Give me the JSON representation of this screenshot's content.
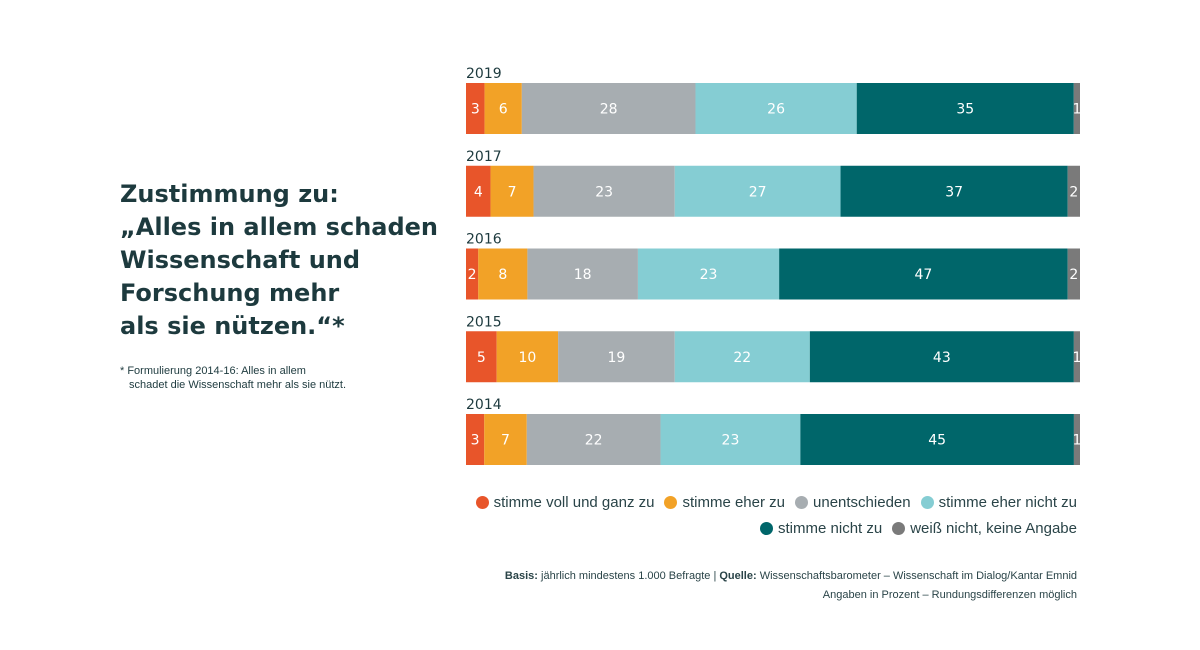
{
  "title": {
    "line1": "Zustimmung zu:",
    "line2": "„Alles in allem schaden",
    "line3": "Wissenschaft und",
    "line4": "Forschung mehr",
    "line5": "als sie nützen.“*"
  },
  "footnote": {
    "line1": "* Formulierung 2014-16: Alles in allem",
    "line2": "schadet die Wissenschaft mehr als sie nützt."
  },
  "chart_data": {
    "type": "bar",
    "orientation": "horizontal",
    "stacked": true,
    "unit": "percent",
    "categories": [
      "2019",
      "2017",
      "2016",
      "2015",
      "2014"
    ],
    "series": [
      {
        "name": "stimme voll und ganz zu",
        "color": "#e8552a",
        "values": [
          3,
          4,
          2,
          5,
          3
        ]
      },
      {
        "name": "stimme eher zu",
        "color": "#f2a227",
        "values": [
          6,
          7,
          8,
          10,
          7
        ]
      },
      {
        "name": "unentschieden",
        "color": "#a7adb1",
        "values": [
          28,
          23,
          18,
          19,
          22
        ]
      },
      {
        "name": "stimme eher nicht zu",
        "color": "#85cdd3",
        "values": [
          26,
          27,
          23,
          22,
          23
        ]
      },
      {
        "name": "stimme nicht zu",
        "color": "#00666a",
        "values": [
          35,
          37,
          47,
          43,
          45
        ]
      },
      {
        "name": "weiß nicht, keine Angabe",
        "color": "#7a7a7a",
        "values": [
          1,
          2,
          2,
          1,
          1
        ]
      }
    ],
    "label_color": "#ffffff"
  },
  "legend": {
    "row1": [
      "stimme voll und ganz zu",
      "stimme eher zu",
      "unentschieden",
      "stimme eher nicht zu"
    ],
    "row2": [
      "stimme nicht zu",
      "weiß nicht, keine Angabe"
    ]
  },
  "source": {
    "basis_label": "Basis:",
    "basis_text": " jährlich mindestens 1.000 Befragte | ",
    "quelle_label": "Quelle:",
    "quelle_text": " Wissenschaftsbarometer – Wissenschaft im Dialog/Kantar Emnid",
    "note": "Angaben in Prozent – Rundungsdifferenzen möglich"
  }
}
